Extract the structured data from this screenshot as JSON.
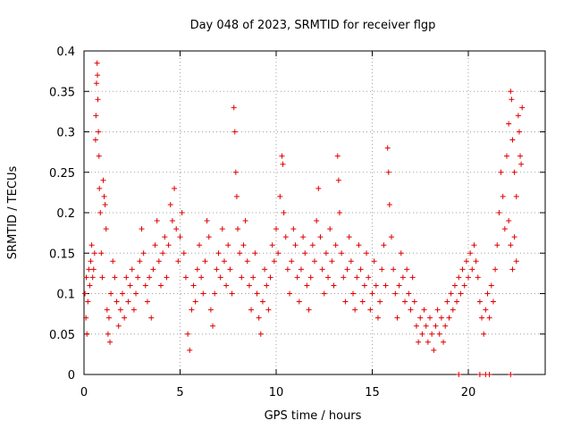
{
  "chart_data": {
    "type": "scatter",
    "title": "Day 048 of 2023, SRMTID for receiver flgp",
    "xlabel": "GPS time / hours",
    "ylabel": "SRMTID / TECUs",
    "xlim": [
      0,
      24
    ],
    "ylim": [
      0,
      0.4
    ],
    "grid": true,
    "marker": "+",
    "color": "#e00000",
    "x_ticks": [
      0,
      5,
      10,
      15,
      20
    ],
    "x_tick_labels": [
      "0",
      "5",
      "10",
      "15",
      "20"
    ],
    "y_ticks": [
      0,
      0.05,
      0.1,
      0.15,
      0.2,
      0.25,
      0.3,
      0.35,
      0.4
    ],
    "y_tick_labels": [
      "0",
      "0.05",
      "0.1",
      "0.15",
      "0.2",
      "0.25",
      "0.3",
      "0.35",
      "0.4"
    ],
    "series": [
      {
        "name": "SRMTID",
        "points": [
          [
            0.05,
            0.1
          ],
          [
            0.1,
            0.07
          ],
          [
            0.12,
            0.12
          ],
          [
            0.15,
            0.05
          ],
          [
            0.2,
            0.09
          ],
          [
            0.25,
            0.13
          ],
          [
            0.3,
            0.11
          ],
          [
            0.35,
            0.14
          ],
          [
            0.4,
            0.16
          ],
          [
            0.45,
            0.12
          ],
          [
            0.5,
            0.13
          ],
          [
            0.55,
            0.15
          ],
          [
            0.6,
            0.29
          ],
          [
            0.62,
            0.32
          ],
          [
            0.65,
            0.36
          ],
          [
            0.68,
            0.385
          ],
          [
            0.7,
            0.37
          ],
          [
            0.72,
            0.34
          ],
          [
            0.75,
            0.3
          ],
          [
            0.78,
            0.27
          ],
          [
            0.8,
            0.23
          ],
          [
            0.85,
            0.2
          ],
          [
            0.9,
            0.15
          ],
          [
            0.95,
            0.12
          ],
          [
            1.0,
            0.24
          ],
          [
            1.05,
            0.22
          ],
          [
            1.1,
            0.21
          ],
          [
            1.15,
            0.18
          ],
          [
            1.2,
            0.08
          ],
          [
            1.25,
            0.05
          ],
          [
            1.3,
            0.07
          ],
          [
            1.35,
            0.04
          ],
          [
            1.4,
            0.1
          ],
          [
            1.5,
            0.14
          ],
          [
            1.6,
            0.12
          ],
          [
            1.7,
            0.09
          ],
          [
            1.8,
            0.06
          ],
          [
            1.9,
            0.08
          ],
          [
            2.0,
            0.1
          ],
          [
            2.1,
            0.07
          ],
          [
            2.2,
            0.12
          ],
          [
            2.3,
            0.09
          ],
          [
            2.4,
            0.11
          ],
          [
            2.5,
            0.13
          ],
          [
            2.6,
            0.08
          ],
          [
            2.7,
            0.1
          ],
          [
            2.8,
            0.12
          ],
          [
            2.9,
            0.14
          ],
          [
            3.0,
            0.18
          ],
          [
            3.1,
            0.15
          ],
          [
            3.2,
            0.11
          ],
          [
            3.3,
            0.09
          ],
          [
            3.4,
            0.12
          ],
          [
            3.5,
            0.07
          ],
          [
            3.6,
            0.13
          ],
          [
            3.7,
            0.16
          ],
          [
            3.8,
            0.19
          ],
          [
            3.9,
            0.14
          ],
          [
            4.0,
            0.11
          ],
          [
            4.1,
            0.15
          ],
          [
            4.2,
            0.17
          ],
          [
            4.3,
            0.12
          ],
          [
            4.4,
            0.16
          ],
          [
            4.5,
            0.21
          ],
          [
            4.6,
            0.19
          ],
          [
            4.7,
            0.23
          ],
          [
            4.8,
            0.18
          ],
          [
            4.9,
            0.14
          ],
          [
            5.0,
            0.17
          ],
          [
            5.1,
            0.2
          ],
          [
            5.2,
            0.15
          ],
          [
            5.3,
            0.12
          ],
          [
            5.4,
            0.05
          ],
          [
            5.5,
            0.03
          ],
          [
            5.6,
            0.08
          ],
          [
            5.7,
            0.11
          ],
          [
            5.8,
            0.09
          ],
          [
            5.9,
            0.13
          ],
          [
            6.0,
            0.16
          ],
          [
            6.1,
            0.12
          ],
          [
            6.2,
            0.1
          ],
          [
            6.3,
            0.14
          ],
          [
            6.4,
            0.19
          ],
          [
            6.5,
            0.17
          ],
          [
            6.6,
            0.08
          ],
          [
            6.7,
            0.06
          ],
          [
            6.8,
            0.1
          ],
          [
            6.9,
            0.13
          ],
          [
            7.0,
            0.15
          ],
          [
            7.1,
            0.12
          ],
          [
            7.2,
            0.18
          ],
          [
            7.3,
            0.14
          ],
          [
            7.4,
            0.11
          ],
          [
            7.5,
            0.16
          ],
          [
            7.6,
            0.13
          ],
          [
            7.7,
            0.1
          ],
          [
            7.8,
            0.33
          ],
          [
            7.85,
            0.3
          ],
          [
            7.9,
            0.25
          ],
          [
            7.95,
            0.22
          ],
          [
            8.0,
            0.18
          ],
          [
            8.1,
            0.15
          ],
          [
            8.2,
            0.12
          ],
          [
            8.3,
            0.16
          ],
          [
            8.4,
            0.19
          ],
          [
            8.5,
            0.14
          ],
          [
            8.6,
            0.11
          ],
          [
            8.7,
            0.08
          ],
          [
            8.8,
            0.12
          ],
          [
            8.9,
            0.15
          ],
          [
            9.0,
            0.1
          ],
          [
            9.1,
            0.07
          ],
          [
            9.2,
            0.05
          ],
          [
            9.3,
            0.09
          ],
          [
            9.4,
            0.13
          ],
          [
            9.5,
            0.11
          ],
          [
            9.6,
            0.08
          ],
          [
            9.7,
            0.12
          ],
          [
            9.8,
            0.16
          ],
          [
            9.9,
            0.14
          ],
          [
            10.0,
            0.18
          ],
          [
            10.1,
            0.15
          ],
          [
            10.2,
            0.22
          ],
          [
            10.3,
            0.27
          ],
          [
            10.35,
            0.26
          ],
          [
            10.4,
            0.2
          ],
          [
            10.5,
            0.17
          ],
          [
            10.6,
            0.13
          ],
          [
            10.7,
            0.1
          ],
          [
            10.8,
            0.14
          ],
          [
            10.9,
            0.18
          ],
          [
            11.0,
            0.16
          ],
          [
            11.1,
            0.12
          ],
          [
            11.2,
            0.09
          ],
          [
            11.3,
            0.13
          ],
          [
            11.4,
            0.17
          ],
          [
            11.5,
            0.15
          ],
          [
            11.6,
            0.11
          ],
          [
            11.7,
            0.08
          ],
          [
            11.8,
            0.12
          ],
          [
            11.9,
            0.16
          ],
          [
            12.0,
            0.14
          ],
          [
            12.1,
            0.19
          ],
          [
            12.2,
            0.23
          ],
          [
            12.3,
            0.17
          ],
          [
            12.4,
            0.13
          ],
          [
            12.5,
            0.1
          ],
          [
            12.6,
            0.15
          ],
          [
            12.7,
            0.12
          ],
          [
            12.8,
            0.18
          ],
          [
            12.9,
            0.14
          ],
          [
            13.0,
            0.11
          ],
          [
            13.1,
            0.16
          ],
          [
            13.2,
            0.27
          ],
          [
            13.25,
            0.24
          ],
          [
            13.3,
            0.2
          ],
          [
            13.4,
            0.15
          ],
          [
            13.5,
            0.12
          ],
          [
            13.6,
            0.09
          ],
          [
            13.7,
            0.13
          ],
          [
            13.8,
            0.17
          ],
          [
            13.9,
            0.14
          ],
          [
            14.0,
            0.1
          ],
          [
            14.1,
            0.08
          ],
          [
            14.2,
            0.12
          ],
          [
            14.3,
            0.16
          ],
          [
            14.4,
            0.13
          ],
          [
            14.5,
            0.09
          ],
          [
            14.6,
            0.11
          ],
          [
            14.7,
            0.15
          ],
          [
            14.8,
            0.12
          ],
          [
            14.9,
            0.08
          ],
          [
            15.0,
            0.1
          ],
          [
            15.1,
            0.14
          ],
          [
            15.2,
            0.11
          ],
          [
            15.3,
            0.07
          ],
          [
            15.4,
            0.09
          ],
          [
            15.5,
            0.13
          ],
          [
            15.6,
            0.16
          ],
          [
            15.7,
            0.11
          ],
          [
            15.8,
            0.28
          ],
          [
            15.85,
            0.25
          ],
          [
            15.9,
            0.21
          ],
          [
            16.0,
            0.17
          ],
          [
            16.1,
            0.13
          ],
          [
            16.2,
            0.1
          ],
          [
            16.3,
            0.07
          ],
          [
            16.4,
            0.11
          ],
          [
            16.5,
            0.15
          ],
          [
            16.6,
            0.12
          ],
          [
            16.7,
            0.09
          ],
          [
            16.8,
            0.13
          ],
          [
            16.9,
            0.1
          ],
          [
            17.0,
            0.08
          ],
          [
            17.1,
            0.12
          ],
          [
            17.2,
            0.09
          ],
          [
            17.3,
            0.06
          ],
          [
            17.4,
            0.04
          ],
          [
            17.5,
            0.07
          ],
          [
            17.6,
            0.05
          ],
          [
            17.7,
            0.08
          ],
          [
            17.8,
            0.06
          ],
          [
            17.9,
            0.04
          ],
          [
            18.0,
            0.07
          ],
          [
            18.1,
            0.05
          ],
          [
            18.2,
            0.03
          ],
          [
            18.3,
            0.06
          ],
          [
            18.4,
            0.08
          ],
          [
            18.5,
            0.05
          ],
          [
            18.6,
            0.07
          ],
          [
            18.7,
            0.04
          ],
          [
            18.8,
            0.06
          ],
          [
            18.9,
            0.09
          ],
          [
            19.0,
            0.07
          ],
          [
            19.1,
            0.1
          ],
          [
            19.2,
            0.08
          ],
          [
            19.3,
            0.11
          ],
          [
            19.4,
            0.09
          ],
          [
            19.5,
            0.12
          ],
          [
            19.6,
            0.1
          ],
          [
            19.7,
            0.13
          ],
          [
            19.8,
            0.11
          ],
          [
            19.9,
            0.14
          ],
          [
            20.0,
            0.12
          ],
          [
            20.1,
            0.15
          ],
          [
            20.2,
            0.13
          ],
          [
            20.3,
            0.16
          ],
          [
            20.4,
            0.14
          ],
          [
            20.5,
            0.12
          ],
          [
            20.6,
            0.09
          ],
          [
            20.7,
            0.07
          ],
          [
            20.8,
            0.05
          ],
          [
            20.9,
            0.08
          ],
          [
            21.0,
            0.1
          ],
          [
            21.1,
            0.07
          ],
          [
            21.2,
            0.11
          ],
          [
            21.3,
            0.09
          ],
          [
            21.4,
            0.13
          ],
          [
            21.5,
            0.16
          ],
          [
            21.6,
            0.2
          ],
          [
            21.7,
            0.25
          ],
          [
            21.8,
            0.22
          ],
          [
            21.9,
            0.18
          ],
          [
            22.0,
            0.27
          ],
          [
            22.1,
            0.31
          ],
          [
            22.2,
            0.35
          ],
          [
            22.25,
            0.34
          ],
          [
            22.3,
            0.29
          ],
          [
            22.4,
            0.25
          ],
          [
            22.5,
            0.22
          ],
          [
            22.6,
            0.32
          ],
          [
            22.65,
            0.3
          ],
          [
            22.7,
            0.27
          ],
          [
            22.75,
            0.26
          ],
          [
            22.8,
            0.33
          ],
          [
            22.5,
            0.14
          ],
          [
            22.4,
            0.17
          ],
          [
            22.3,
            0.13
          ],
          [
            22.2,
            0.16
          ],
          [
            22.1,
            0.19
          ],
          [
            19.5,
            0.0
          ],
          [
            20.6,
            0.0
          ],
          [
            20.9,
            0.0
          ],
          [
            21.1,
            0.0
          ],
          [
            22.2,
            0.0
          ]
        ]
      }
    ]
  }
}
